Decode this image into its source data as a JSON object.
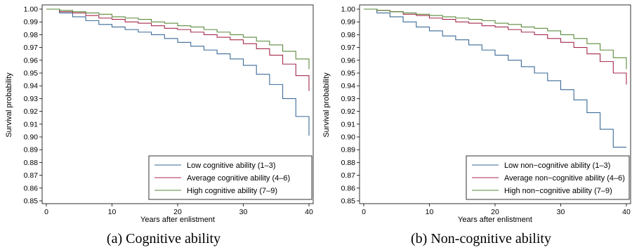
{
  "colors": {
    "low": "#3a6a98",
    "average": "#a4294a",
    "high": "#5b8a3a"
  },
  "chart_data": [
    {
      "type": "line",
      "step": true,
      "caption": "(a) Cognitive ability",
      "xlabel": "Years after enlistment",
      "ylabel": "Survival probability",
      "xlim": [
        0,
        40
      ],
      "ylim": [
        0.85,
        1.0
      ],
      "xticks": [
        "0",
        "10",
        "20",
        "30",
        "40"
      ],
      "yticks": [
        "0.85",
        "0.86",
        "0.87",
        "0.88",
        "0.89",
        "0.90",
        "0.91",
        "0.92",
        "0.93",
        "0.94",
        "0.95",
        "0.96",
        "0.97",
        "0.98",
        "0.99",
        "1.00"
      ],
      "legend_position": "bottom-right",
      "x": [
        0,
        2,
        4,
        6,
        8,
        10,
        12,
        14,
        16,
        18,
        20,
        22,
        24,
        26,
        28,
        30,
        32,
        34,
        36,
        38,
        40
      ],
      "series": [
        {
          "name": "Low cognitive ability (1–3)",
          "key": "low",
          "values": [
            1.0,
            0.997,
            0.994,
            0.991,
            0.988,
            0.986,
            0.984,
            0.982,
            0.98,
            0.977,
            0.974,
            0.971,
            0.968,
            0.965,
            0.961,
            0.956,
            0.949,
            0.941,
            0.93,
            0.916,
            0.901
          ]
        },
        {
          "name": "Average cognitive ability (4–6)",
          "key": "average",
          "values": [
            1.0,
            0.998,
            0.997,
            0.995,
            0.993,
            0.992,
            0.99,
            0.989,
            0.987,
            0.985,
            0.984,
            0.982,
            0.98,
            0.978,
            0.976,
            0.973,
            0.969,
            0.964,
            0.957,
            0.948,
            0.936
          ]
        },
        {
          "name": "High cognitive ability (7–9)",
          "key": "high",
          "values": [
            1.0,
            0.999,
            0.998,
            0.997,
            0.996,
            0.994,
            0.993,
            0.992,
            0.99,
            0.989,
            0.987,
            0.986,
            0.984,
            0.982,
            0.98,
            0.978,
            0.975,
            0.972,
            0.967,
            0.961,
            0.953
          ]
        }
      ]
    },
    {
      "type": "line",
      "step": true,
      "caption": "(b) Non-cognitive ability",
      "xlabel": "Years after enlistment",
      "ylabel": "Survival probability",
      "xlim": [
        0,
        40
      ],
      "ylim": [
        0.85,
        1.0
      ],
      "xticks": [
        "0",
        "10",
        "20",
        "30",
        "40"
      ],
      "yticks": [
        "0.85",
        "0.86",
        "0.87",
        "0.88",
        "0.89",
        "0.90",
        "0.91",
        "0.92",
        "0.93",
        "0.94",
        "0.95",
        "0.96",
        "0.97",
        "0.98",
        "0.99",
        "1.00"
      ],
      "legend_position": "bottom-right",
      "x": [
        0,
        2,
        4,
        6,
        8,
        10,
        12,
        14,
        16,
        18,
        20,
        22,
        24,
        26,
        28,
        30,
        32,
        34,
        36,
        38,
        40
      ],
      "series": [
        {
          "name": "Low non−cognitive ability (1–3)",
          "key": "low",
          "values": [
            1.0,
            0.997,
            0.994,
            0.99,
            0.986,
            0.983,
            0.979,
            0.976,
            0.972,
            0.968,
            0.964,
            0.96,
            0.955,
            0.95,
            0.944,
            0.937,
            0.929,
            0.919,
            0.906,
            0.892,
            0.892
          ]
        },
        {
          "name": "Average non−cognitive ability (4–6)",
          "key": "average",
          "values": [
            1.0,
            0.999,
            0.998,
            0.996,
            0.995,
            0.993,
            0.992,
            0.99,
            0.989,
            0.987,
            0.986,
            0.984,
            0.982,
            0.98,
            0.977,
            0.974,
            0.97,
            0.965,
            0.959,
            0.95,
            0.941
          ]
        },
        {
          "name": "High non−cognitive ability (7–9)",
          "key": "high",
          "values": [
            1.0,
            0.999,
            0.998,
            0.997,
            0.996,
            0.995,
            0.994,
            0.993,
            0.992,
            0.991,
            0.989,
            0.988,
            0.986,
            0.985,
            0.983,
            0.98,
            0.977,
            0.973,
            0.968,
            0.962,
            0.953
          ]
        }
      ]
    }
  ]
}
